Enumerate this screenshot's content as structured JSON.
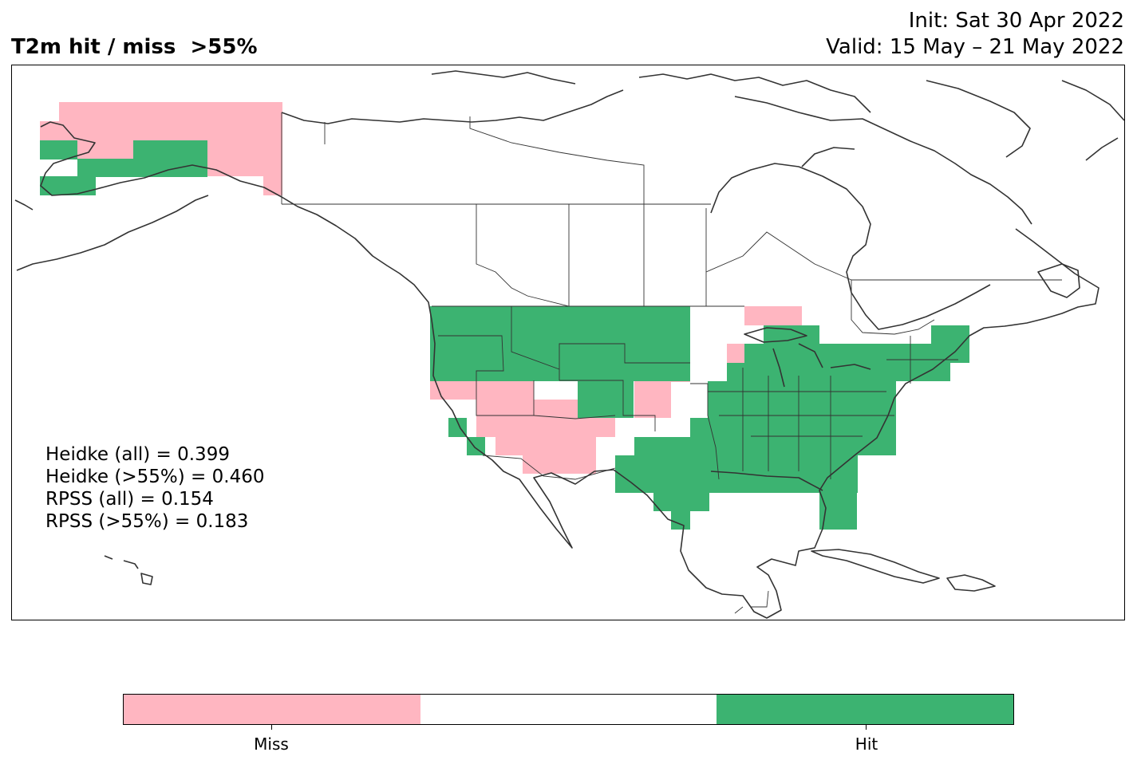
{
  "title": {
    "left": "T2m hit / miss  >55%",
    "init": "Init: Sat 30 Apr 2022",
    "valid": "Valid: 15 May – 21 May 2022"
  },
  "scores": {
    "heidke_all": "Heidke (all) = 0.399",
    "heidke_55": "Heidke (>55%) = 0.460",
    "rpss_all": "RPSS (all) = 0.154",
    "rpss_55": "RPSS (>55%) = 0.183"
  },
  "colorbar": {
    "miss_label": "Miss",
    "hit_label": "Hit",
    "miss_color": "#ffb6c1",
    "neutral_color": "#ffffff",
    "hit_color": "#3cb371"
  },
  "map": {
    "region": "North America",
    "coastline_color": "#333333",
    "border_color": "#333333"
  }
}
